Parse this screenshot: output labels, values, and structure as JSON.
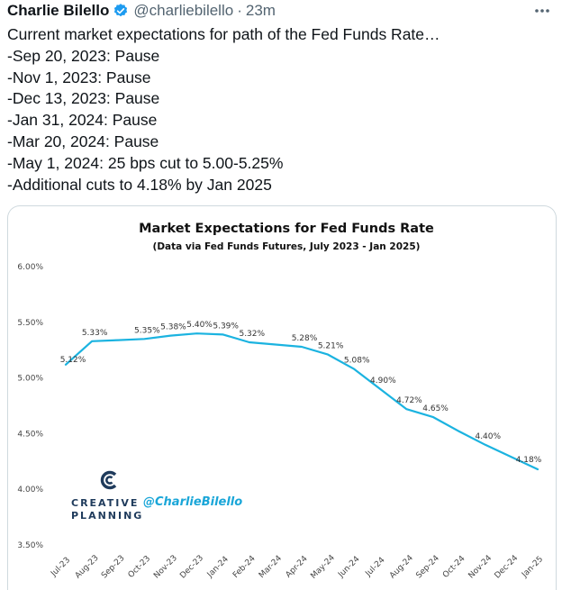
{
  "tweet": {
    "author": "Charlie Bilello",
    "handle": "@charliebilello",
    "separator": "·",
    "time": "23m",
    "lines": [
      "Current market expectations for path of the Fed Funds Rate…",
      "-Sep 20, 2023: Pause",
      "-Nov 1, 2023: Pause",
      "-Dec 13, 2023: Pause",
      "-Jan 31, 2024: Pause",
      "-Mar 20, 2024: Pause",
      "-May 1, 2024: 25 bps cut to 5.00-5.25%",
      "-Additional cuts to 4.18% by Jan 2025"
    ]
  },
  "icons": {
    "verified": "verified-badge-icon",
    "more": "more-options-icon",
    "logo": "creative-planning-logo-icon"
  },
  "colors": {
    "line": "#1bb3e0",
    "verified": "#1d9bf0",
    "brand_dark": "#1f3b5c",
    "watermark": "#1aa6d8"
  },
  "chart_data": {
    "type": "line",
    "title": "Market Expectations for Fed Funds Rate",
    "subtitle": "(Data via Fed Funds Futures, July 2023 - Jan 2025)",
    "xlabel": "",
    "ylabel": "",
    "ylim": [
      3.5,
      6.0
    ],
    "yticks": [
      3.5,
      4.0,
      4.5,
      5.0,
      5.5,
      6.0
    ],
    "ytick_labels": [
      "3.50%",
      "4.00%",
      "4.50%",
      "5.00%",
      "5.50%",
      "6.00%"
    ],
    "grid": false,
    "categories": [
      "Jul-23",
      "Aug-23",
      "Sep-23",
      "Oct-23",
      "Nov-23",
      "Dec-23",
      "Jan-24",
      "Feb-24",
      "Mar-24",
      "Apr-24",
      "May-24",
      "Jun-24",
      "Jul-24",
      "Aug-24",
      "Sep-24",
      "Oct-24",
      "Nov-24",
      "Dec-24",
      "Jan-25"
    ],
    "values": [
      5.12,
      5.33,
      5.34,
      5.35,
      5.38,
      5.4,
      5.39,
      5.32,
      5.3,
      5.28,
      5.21,
      5.08,
      4.9,
      4.72,
      4.65,
      4.52,
      4.4,
      4.29,
      4.18
    ],
    "data_labels": {
      "0": "5.12%",
      "1": "5.33%",
      "3": "5.35%",
      "4": "5.38%",
      "5": "5.40%",
      "6": "5.39%",
      "7": "5.32%",
      "9": "5.28%",
      "10": "5.21%",
      "11": "5.08%",
      "12": "4.90%",
      "13": "4.72%",
      "14": "4.65%",
      "16": "4.40%",
      "18": "4.18%"
    },
    "watermark": {
      "brand_line1": "CREATIVE",
      "brand_line2": "PLANNING",
      "handle": "@CharlieBilello"
    }
  }
}
